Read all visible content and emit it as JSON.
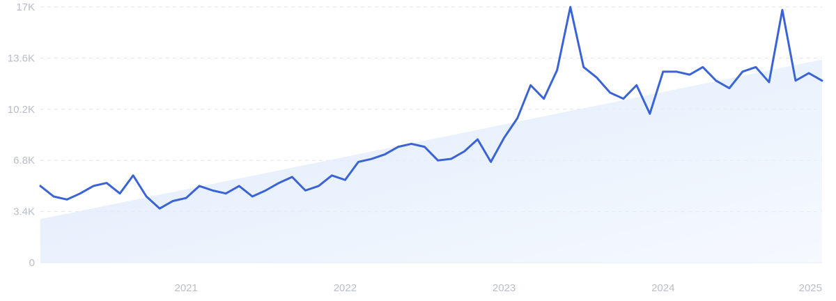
{
  "chart_data": {
    "type": "line",
    "x_start": "2020-02",
    "x_step": "month",
    "xlim": [
      "2020-02",
      "2025-01"
    ],
    "ylim": [
      0,
      17000
    ],
    "y_ticks": [
      0,
      3400,
      6800,
      10200,
      13600,
      17000
    ],
    "y_tick_labels": [
      "0",
      "3.4K",
      "6.8K",
      "10.2K",
      "13.6K",
      "17K"
    ],
    "x_ticks": [
      "2021-01",
      "2022-01",
      "2023-01",
      "2024-01",
      "2025-01"
    ],
    "x_tick_labels": [
      "2021",
      "2022",
      "2023",
      "2024",
      "2025"
    ],
    "grid": "horizontal dashed",
    "series": [
      {
        "color": "#3a63d6",
        "values": [
          5100,
          4400,
          4200,
          4600,
          5100,
          5300,
          4600,
          5800,
          4400,
          3600,
          4100,
          4300,
          5100,
          4800,
          4600,
          5100,
          4400,
          4800,
          5300,
          5700,
          4800,
          5100,
          5800,
          5500,
          6700,
          6900,
          7200,
          7700,
          7900,
          7700,
          6800,
          6900,
          7400,
          8200,
          6700,
          8300,
          9600,
          11800,
          10900,
          12800,
          17000,
          13000,
          12300,
          11300,
          10900,
          11800,
          9900,
          12700,
          12700,
          12500,
          13000,
          12100,
          11600,
          12700,
          13000,
          12000,
          16800,
          12100,
          12600,
          12100
        ]
      }
    ],
    "trend": {
      "color": "#d7e7fb",
      "start": [
        "2020-02",
        2900
      ],
      "end": [
        "2025-01",
        13500
      ]
    }
  }
}
